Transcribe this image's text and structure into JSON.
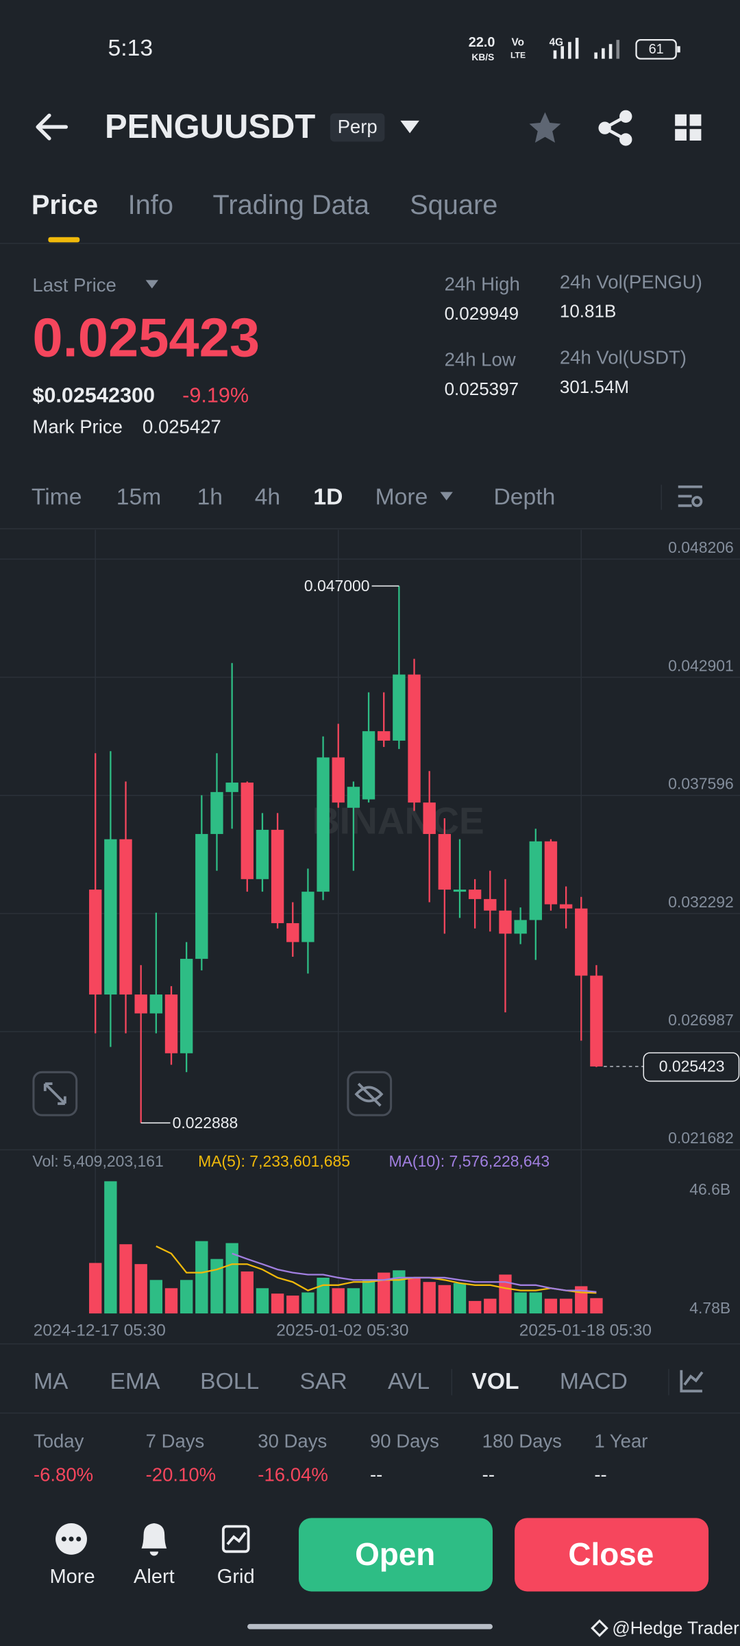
{
  "status_bar": {
    "time": "5:13",
    "speed": "22.0",
    "speed_unit": "KB/S",
    "volte_top": "Vo",
    "volte_bottom": "LTE",
    "network": "4G",
    "battery": "61"
  },
  "header": {
    "symbol": "PENGUUSDT",
    "badge": "Perp"
  },
  "tabs": [
    "Price",
    "Info",
    "Trading Data",
    "Square"
  ],
  "ticker": {
    "last_price_label": "Last Price",
    "last_price": "0.025423",
    "usd_price": "$0.02542300",
    "change": "-9.19%",
    "mark_price_label": "Mark Price",
    "mark_price": "0.025427",
    "stats": [
      {
        "label": "24h High",
        "value": "0.029949"
      },
      {
        "label": "24h Vol(PENGU)",
        "value": "10.81B"
      },
      {
        "label": "24h Low",
        "value": "0.025397"
      },
      {
        "label": "24h Vol(USDT)",
        "value": "301.54M"
      }
    ]
  },
  "intervals": [
    "Time",
    "15m",
    "1h",
    "4h",
    "1D",
    "More",
    "Depth"
  ],
  "chart_data": {
    "type": "candlestick",
    "watermark": "BINANCE",
    "up_color": "#2ebd85",
    "down_color": "#f6465d",
    "grid": true,
    "categories": [
      "2024-12-17 05:30",
      null,
      null,
      null,
      null,
      null,
      null,
      null,
      null,
      null,
      null,
      null,
      null,
      null,
      null,
      null,
      "2025-01-02 05:30",
      null,
      null,
      null,
      null,
      null,
      null,
      null,
      null,
      null,
      null,
      null,
      null,
      null,
      null,
      null,
      "2025-01-18 05:30",
      null
    ],
    "open": [
      0.033366,
      0.028655,
      0.035628,
      0.028655,
      0.027807,
      0.028655,
      0.026017,
      0.030257,
      0.035863,
      0.037748,
      0.038172,
      0.033837,
      0.036052,
      0.031859,
      0.031011,
      0.033272,
      0.039302,
      0.037041,
      0.037418,
      0.04048,
      0.040056,
      0.043024,
      0.037276,
      0.035863,
      0.033272,
      0.033366,
      0.032942,
      0.032424,
      0.031388,
      0.032,
      0.035533,
      0.032707,
      0.032518,
      0.029503
    ],
    "high": [
      0.039491,
      0.039585,
      0.038219,
      0.029974,
      0.03233,
      0.029032,
      0.031011,
      0.037606,
      0.039491,
      0.043542,
      0.038219,
      0.036805,
      0.036805,
      0.032801,
      0.034309,
      0.040244,
      0.04081,
      0.038219,
      0.042223,
      0.042223,
      0.047,
      0.043731,
      0.03869,
      0.03657,
      0.035628,
      0.033837,
      0.034214,
      0.033837,
      0.032565,
      0.036099,
      0.035628,
      0.033508,
      0.033037,
      0.029974
    ],
    "low": [
      0.026912,
      0.0263,
      0.026912,
      0.022888,
      0.026912,
      0.025499,
      0.025169,
      0.029739,
      0.034214,
      0.036099,
      0.033272,
      0.033272,
      0.031623,
      0.030351,
      0.029598,
      0.032895,
      0.037041,
      0.034214,
      0.037276,
      0.039773,
      0.039679,
      0.0369,
      0.032801,
      0.031388,
      0.032094,
      0.031623,
      0.031482,
      0.027854,
      0.030917,
      0.03021,
      0.032424,
      0.031623,
      0.026583,
      0.025397
    ],
    "close": [
      0.028655,
      0.035628,
      0.028655,
      0.027807,
      0.028655,
      0.026017,
      0.030257,
      0.035863,
      0.037748,
      0.038172,
      0.033837,
      0.036052,
      0.031859,
      0.031011,
      0.033272,
      0.039302,
      0.037276,
      0.037983,
      0.04048,
      0.040056,
      0.043024,
      0.037276,
      0.035863,
      0.033366,
      0.033366,
      0.032942,
      0.032424,
      0.031388,
      0.032,
      0.035533,
      0.032707,
      0.032518,
      0.029503,
      0.025423
    ],
    "ylim": [
      0.021682,
      0.049525
    ],
    "yticks": [
      0.021682,
      0.026987,
      0.032292,
      0.037596,
      0.042901,
      0.048206
    ],
    "high_label": {
      "value": 0.047,
      "label": "0.047000"
    },
    "low_label": 0.022888,
    "last_label": 0.025423,
    "volume": {
      "label": "Vol: 5,409,203,161",
      "values": [
        17.8,
        46.6,
        24.4,
        17.4,
        11.8,
        8.9,
        11.8,
        25.5,
        19.2,
        24.8,
        14.8,
        8.9,
        7.0,
        6.3,
        7.4,
        12.6,
        8.9,
        8.9,
        11.8,
        14.4,
        15.2,
        12.6,
        11.1,
        10.0,
        10.7,
        4.4,
        5.2,
        13.7,
        7.4,
        7.4,
        5.2,
        5.2,
        9.6,
        5.41
      ],
      "ylim": [
        0,
        46.6
      ],
      "yticks": [
        {
          "value": 46.6,
          "label": "46.6B"
        },
        {
          "value": 4.78,
          "label": "4.78B"
        }
      ],
      "ma_lines": [
        {
          "label": "MA(5): 7,233,601,685",
          "color": "#f0b90b",
          "values": [
            null,
            null,
            null,
            null,
            23.7,
            21.1,
            14.4,
            14.4,
            15.5,
            17.4,
            17.4,
            15.5,
            12.6,
            11.1,
            8.1,
            10.0,
            10.0,
            11.1,
            11.1,
            11.8,
            11.8,
            12.6,
            12.6,
            11.8,
            10.7,
            10.0,
            10.0,
            8.9,
            8.1,
            8.1,
            8.9,
            8.1,
            7.4,
            7.23
          ]
        },
        {
          "label": "MA(10): 7,576,228,643",
          "color": "#a17fe0",
          "values": [
            null,
            null,
            null,
            null,
            null,
            null,
            null,
            null,
            null,
            21.1,
            19.2,
            17.4,
            15.5,
            14.4,
            13.7,
            13.7,
            12.6,
            11.8,
            11.8,
            11.8,
            12.6,
            12.6,
            12.6,
            12.6,
            11.8,
            11.1,
            11.1,
            11.1,
            10.0,
            10.0,
            8.9,
            8.1,
            8.1,
            7.58
          ]
        }
      ]
    }
  },
  "indicators": [
    "MA",
    "EMA",
    "BOLL",
    "SAR",
    "AVL",
    "VOL",
    "MACD"
  ],
  "performance": [
    {
      "label": "Today",
      "value": "-6.80%"
    },
    {
      "label": "7 Days",
      "value": "-20.10%"
    },
    {
      "label": "30 Days",
      "value": "-16.04%"
    },
    {
      "label": "90 Days",
      "value": "--"
    },
    {
      "label": "180 Days",
      "value": "--"
    },
    {
      "label": "1 Year",
      "value": "--"
    }
  ],
  "bottom_bar": {
    "more": "More",
    "alert": "Alert",
    "grid": "Grid",
    "open": "Open",
    "close": "Close"
  },
  "watermark": "@Hedge Trader"
}
